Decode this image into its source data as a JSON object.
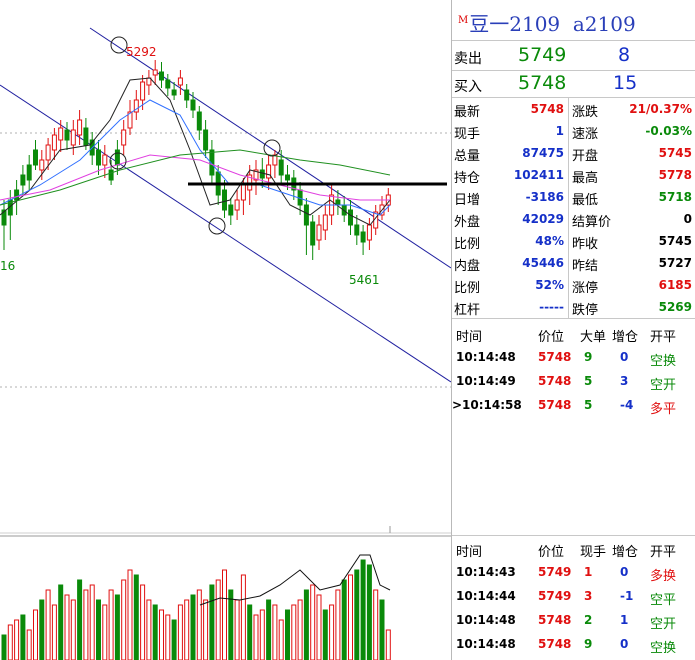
{
  "contract": {
    "marker": "M",
    "name": "豆一2109",
    "code": "a2109"
  },
  "quote": {
    "sell_label": "卖出",
    "sell_price": "5749",
    "sell_vol": "8",
    "buy_label": "买入",
    "buy_price": "5748",
    "buy_vol": "15"
  },
  "stats_left": [
    {
      "label": "最新",
      "value": "5748",
      "color": "red"
    },
    {
      "label": "现手",
      "value": "1",
      "color": "blue"
    },
    {
      "label": "总量",
      "value": "87475",
      "color": "blue"
    },
    {
      "label": "持仓",
      "value": "102411",
      "color": "blue"
    },
    {
      "label": "日增",
      "value": "-3186",
      "color": "blue"
    },
    {
      "label": "外盘",
      "value": "42029",
      "color": "blue"
    },
    {
      "label": "比例",
      "value": "48%",
      "color": "blue"
    },
    {
      "label": "内盘",
      "value": "45446",
      "color": "blue"
    },
    {
      "label": "比例",
      "value": "52%",
      "color": "blue"
    },
    {
      "label": "杠杆",
      "value": "-----",
      "color": "blue"
    }
  ],
  "stats_right": [
    {
      "label": "涨跌",
      "value": "21/0.37%",
      "color": "red"
    },
    {
      "label": "速涨",
      "value": "-0.03%",
      "color": "green"
    },
    {
      "label": "开盘",
      "value": "5745",
      "color": "red"
    },
    {
      "label": "最高",
      "value": "5778",
      "color": "red"
    },
    {
      "label": "最低",
      "value": "5718",
      "color": "green"
    },
    {
      "label": "结算价",
      "value": "0",
      "color": "black"
    },
    {
      "label": "昨收",
      "value": "5745",
      "color": "black"
    },
    {
      "label": "昨结",
      "value": "5727",
      "color": "black"
    },
    {
      "label": "涨停",
      "value": "6185",
      "color": "red"
    },
    {
      "label": "跌停",
      "value": "5269",
      "color": "green"
    }
  ],
  "ticks_header": {
    "time": "时间",
    "price": "价位",
    "vol": "大单",
    "oi": "增仓",
    "type": "开平"
  },
  "ticks1": [
    {
      "time": "10:14:48",
      "price": "5748",
      "vol": "9",
      "oi": "0",
      "type": "空换"
    },
    {
      "time": "10:14:49",
      "price": "5748",
      "vol": "5",
      "oi": "3",
      "type": "空开"
    },
    {
      "time": "10:14:58",
      "price": "5748",
      "vol": "5",
      "oi": "-4",
      "type": "多平",
      "prefix": ">"
    }
  ],
  "ticks_header2": {
    "time": "时间",
    "price": "价位",
    "vol": "现手",
    "oi": "增仓",
    "type": "开平"
  },
  "ticks2": [
    {
      "time": "10:14:43",
      "price": "5749",
      "vol": "1",
      "oi": "0",
      "type": "多换"
    },
    {
      "time": "10:14:44",
      "price": "5749",
      "vol": "3",
      "oi": "-1",
      "type": "空平"
    },
    {
      "time": "10:14:48",
      "price": "5748",
      "vol": "2",
      "oi": "1",
      "type": "空开"
    },
    {
      "time": "10:14:48",
      "price": "5748",
      "vol": "9",
      "oi": "0",
      "type": "空换"
    }
  ],
  "chart": {
    "high_label": "5292",
    "low_label": "5461",
    "left_label": "16",
    "colors": {
      "up": "#e01010",
      "down": "#0a8a0a",
      "channel": "#2020a0",
      "ma_white": "#222222",
      "ma_blue": "#3070ff",
      "ma_pink": "#e040e0",
      "ma_green": "#209020"
    }
  }
}
